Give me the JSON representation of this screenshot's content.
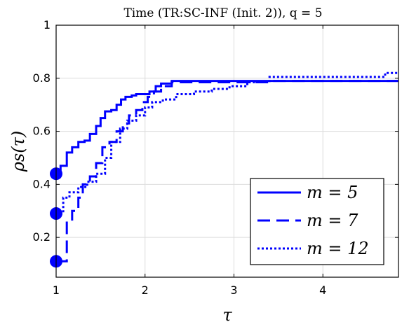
{
  "chart_data": {
    "type": "line",
    "title": "Time (TR:SC-INF (Init. 2)), q = 5",
    "xlabel": "τ",
    "ylabel": "ρs(τ)",
    "xlim": [
      1,
      4.85
    ],
    "ylim": [
      0.05,
      1.0
    ],
    "xticks": [
      1,
      2,
      3,
      4
    ],
    "yticks": [
      0.2,
      0.4,
      0.6,
      0.8,
      1
    ],
    "grid": true,
    "legend_position": "bottom-right",
    "color": "#0000ff",
    "series": [
      {
        "name": "m = 5",
        "style": "solid",
        "x": [
          1,
          1.05,
          1.12,
          1.18,
          1.25,
          1.32,
          1.38,
          1.45,
          1.5,
          1.55,
          1.62,
          1.68,
          1.73,
          1.78,
          1.85,
          1.9,
          2.05,
          2.12,
          2.18,
          2.3,
          4.85
        ],
        "y": [
          0.44,
          0.47,
          0.52,
          0.54,
          0.56,
          0.565,
          0.59,
          0.62,
          0.65,
          0.675,
          0.68,
          0.7,
          0.72,
          0.73,
          0.735,
          0.74,
          0.75,
          0.77,
          0.78,
          0.79,
          0.79
        ]
      },
      {
        "name": "m = 7",
        "style": "dashed",
        "x": [
          1,
          1.12,
          1.18,
          1.25,
          1.3,
          1.38,
          1.45,
          1.52,
          1.6,
          1.68,
          1.75,
          1.82,
          1.9,
          1.97,
          2.03,
          2.1,
          2.18,
          2.3,
          3.4,
          4.85
        ],
        "y": [
          0.11,
          0.26,
          0.3,
          0.35,
          0.4,
          0.43,
          0.48,
          0.54,
          0.56,
          0.6,
          0.63,
          0.66,
          0.68,
          0.71,
          0.73,
          0.75,
          0.77,
          0.785,
          0.79,
          0.79
        ]
      },
      {
        "name": "m = 12",
        "style": "dotted",
        "x": [
          1,
          1.08,
          1.15,
          1.25,
          1.35,
          1.45,
          1.55,
          1.62,
          1.72,
          1.8,
          1.9,
          2.0,
          2.08,
          2.2,
          2.35,
          2.55,
          2.75,
          2.95,
          3.15,
          3.4,
          4.7,
          4.85
        ],
        "y": [
          0.29,
          0.35,
          0.37,
          0.39,
          0.41,
          0.44,
          0.5,
          0.56,
          0.61,
          0.64,
          0.66,
          0.69,
          0.71,
          0.72,
          0.74,
          0.75,
          0.76,
          0.77,
          0.785,
          0.805,
          0.82,
          0.82
        ]
      }
    ],
    "legend": [
      {
        "label": "m = 5",
        "style": "solid"
      },
      {
        "label": "m = 7",
        "style": "dashed"
      },
      {
        "label": "m = 12",
        "style": "dotted"
      }
    ]
  }
}
